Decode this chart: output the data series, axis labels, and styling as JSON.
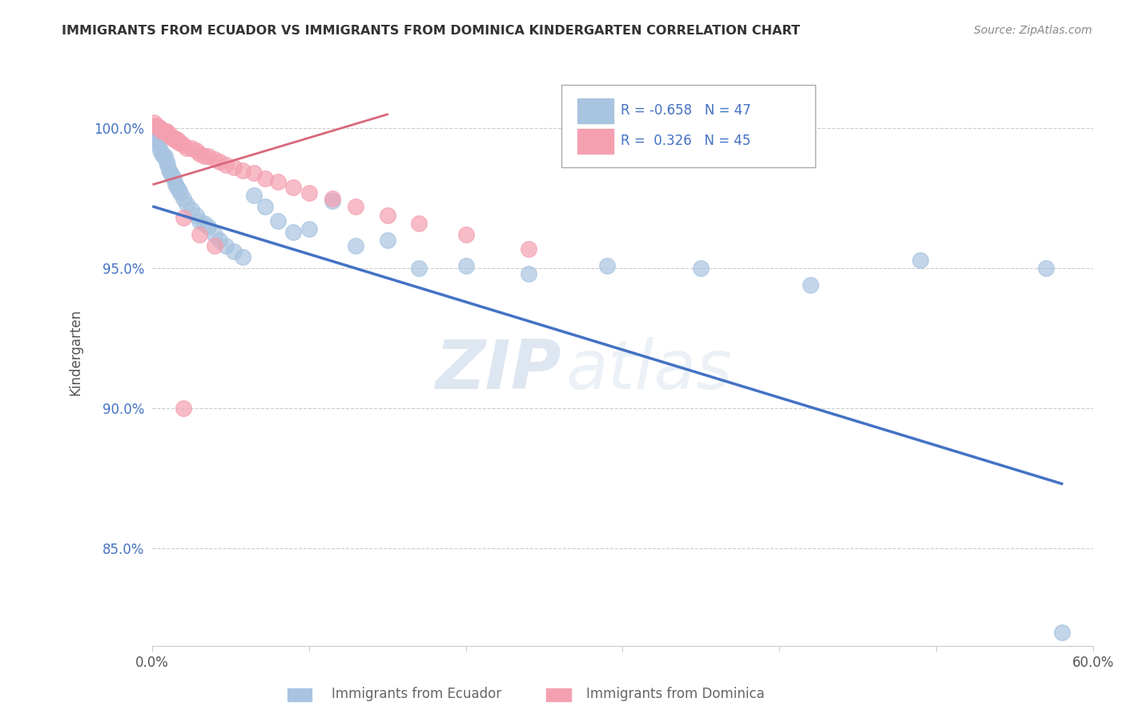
{
  "title": "IMMIGRANTS FROM ECUADOR VS IMMIGRANTS FROM DOMINICA KINDERGARTEN CORRELATION CHART",
  "source": "Source: ZipAtlas.com",
  "ylabel": "Kindergarten",
  "xlim": [
    0.0,
    0.6
  ],
  "ylim": [
    0.815,
    1.025
  ],
  "xticks": [
    0.0,
    0.1,
    0.2,
    0.3,
    0.4,
    0.5,
    0.6
  ],
  "xticklabels": [
    "0.0%",
    "",
    "",
    "",
    "",
    "",
    "60.0%"
  ],
  "yticks": [
    0.85,
    0.9,
    0.95,
    1.0
  ],
  "yticklabels": [
    "85.0%",
    "90.0%",
    "95.0%",
    "100.0%"
  ],
  "ecuador_color": "#a8c4e0",
  "dominica_color": "#f4a0b0",
  "ecuador_line_color": "#4472c4",
  "dominica_line_color": "#d9687a",
  "ecuador_R": -0.658,
  "ecuador_N": 47,
  "dominica_R": 0.326,
  "dominica_N": 45,
  "watermark_zip": "ZIP",
  "watermark_atlas": "atlas",
  "background_color": "#ffffff",
  "ecuador_x": [
    0.001,
    0.002,
    0.003,
    0.004,
    0.005,
    0.006,
    0.007,
    0.008,
    0.009,
    0.01,
    0.011,
    0.012,
    0.013,
    0.014,
    0.015,
    0.016,
    0.017,
    0.018,
    0.02,
    0.022,
    0.025,
    0.028,
    0.03,
    0.033,
    0.036,
    0.04,
    0.043,
    0.047,
    0.052,
    0.058,
    0.065,
    0.072,
    0.08,
    0.09,
    0.1,
    0.115,
    0.13,
    0.15,
    0.17,
    0.2,
    0.24,
    0.29,
    0.35,
    0.42,
    0.49,
    0.57,
    0.58
  ],
  "ecuador_y": [
    0.998,
    0.996,
    0.996,
    0.994,
    0.992,
    0.991,
    0.99,
    0.99,
    0.988,
    0.987,
    0.985,
    0.984,
    0.983,
    0.982,
    0.98,
    0.979,
    0.978,
    0.977,
    0.975,
    0.973,
    0.971,
    0.969,
    0.967,
    0.966,
    0.965,
    0.962,
    0.96,
    0.958,
    0.956,
    0.954,
    0.976,
    0.972,
    0.967,
    0.963,
    0.964,
    0.974,
    0.958,
    0.96,
    0.95,
    0.951,
    0.948,
    0.951,
    0.95,
    0.944,
    0.953,
    0.95,
    0.82
  ],
  "dominica_x": [
    0.001,
    0.002,
    0.003,
    0.004,
    0.005,
    0.006,
    0.007,
    0.008,
    0.009,
    0.01,
    0.011,
    0.012,
    0.013,
    0.014,
    0.015,
    0.016,
    0.017,
    0.018,
    0.02,
    0.022,
    0.025,
    0.028,
    0.03,
    0.033,
    0.036,
    0.04,
    0.043,
    0.047,
    0.052,
    0.058,
    0.065,
    0.072,
    0.08,
    0.09,
    0.1,
    0.115,
    0.13,
    0.15,
    0.17,
    0.2,
    0.24,
    0.02,
    0.03,
    0.04,
    0.02
  ],
  "dominica_y": [
    1.002,
    1.001,
    1.001,
    1.0,
    1.0,
    0.999,
    0.999,
    0.999,
    0.999,
    0.998,
    0.998,
    0.997,
    0.997,
    0.996,
    0.996,
    0.996,
    0.995,
    0.995,
    0.994,
    0.993,
    0.993,
    0.992,
    0.991,
    0.99,
    0.99,
    0.989,
    0.988,
    0.987,
    0.986,
    0.985,
    0.984,
    0.982,
    0.981,
    0.979,
    0.977,
    0.975,
    0.972,
    0.969,
    0.966,
    0.962,
    0.957,
    0.968,
    0.962,
    0.958,
    0.9
  ],
  "ecuador_line_x0": 0.001,
  "ecuador_line_x1": 0.58,
  "ecuador_line_y0": 0.972,
  "ecuador_line_y1": 0.873,
  "dominica_line_x0": 0.001,
  "dominica_line_x1": 0.15,
  "dominica_line_y0": 0.98,
  "dominica_line_y1": 1.005
}
